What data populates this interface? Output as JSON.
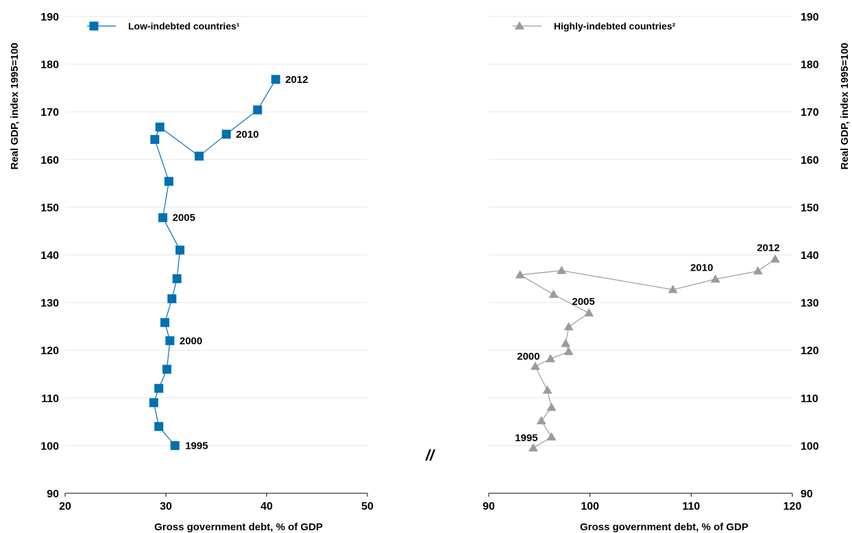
{
  "chart_data": [
    {
      "type": "line",
      "ylabel": "Real GDP, index 1995=100",
      "xlabel": "Gross government debt, % of GDP",
      "xlim": [
        20,
        50
      ],
      "ylim": [
        90,
        190
      ],
      "xticks": [
        20,
        30,
        40,
        50
      ],
      "yticks": [
        90,
        100,
        110,
        120,
        130,
        140,
        150,
        160,
        170,
        180,
        190
      ],
      "grid": "horizontal",
      "legend_position": "top-left",
      "series": [
        {
          "name": "Low-indebted countries¹",
          "color": "#0070b0",
          "marker": "square",
          "x": [
            30.9,
            29.3,
            28.8,
            29.3,
            30.1,
            30.4,
            29.9,
            30.6,
            31.1,
            31.4,
            29.7,
            30.3,
            28.9,
            29.4,
            33.3,
            36.0,
            39.1,
            40.9
          ],
          "y": [
            100.0,
            104.0,
            109.0,
            112.0,
            116.0,
            122.0,
            125.8,
            130.8,
            135.0,
            141.0,
            147.8,
            155.4,
            164.2,
            166.8,
            160.7,
            165.3,
            170.4,
            176.8
          ]
        }
      ],
      "annotations": [
        {
          "text": "1995",
          "x": 30.9,
          "y": 100.0
        },
        {
          "text": "2000",
          "x": 30.4,
          "y": 122.0
        },
        {
          "text": "2005",
          "x": 29.7,
          "y": 147.8
        },
        {
          "text": "2010",
          "x": 36.0,
          "y": 165.3
        },
        {
          "text": "2012",
          "x": 40.9,
          "y": 176.8
        }
      ]
    },
    {
      "type": "line",
      "ylabel": "Real GDP, index 1995=100",
      "xlabel": "Gross government debt, % of GDP",
      "xlim": [
        90,
        120
      ],
      "ylim": [
        90,
        190
      ],
      "xticks": [
        90,
        100,
        110,
        120
      ],
      "yticks": [
        90,
        100,
        110,
        120,
        130,
        140,
        150,
        160,
        170,
        180,
        190
      ],
      "grid": "horizontal",
      "legend_position": "top-left",
      "series": [
        {
          "name": "Highly-indebted countries²",
          "color": "#9b9b9b",
          "marker": "triangle",
          "x": [
            94.4,
            96.2,
            95.2,
            96.2,
            95.8,
            94.6,
            96.1,
            97.9,
            97.6,
            97.9,
            99.9,
            96.4,
            93.1,
            97.2,
            108.2,
            112.4,
            116.6,
            118.3
          ],
          "y": [
            99.5,
            101.8,
            105.2,
            108.0,
            111.6,
            116.6,
            118.2,
            119.7,
            121.4,
            124.9,
            127.8,
            131.7,
            135.8,
            136.7,
            132.7,
            134.9,
            136.6,
            139.1
          ]
        }
      ],
      "annotations": [
        {
          "text": "1995",
          "x": 94.4,
          "y": 99.5
        },
        {
          "text": "2000",
          "x": 94.6,
          "y": 116.6
        },
        {
          "text": "2005",
          "x": 99.9,
          "y": 127.8
        },
        {
          "text": "2010",
          "x": 112.4,
          "y": 134.9
        },
        {
          "text": "2012",
          "x": 118.3,
          "y": 139.1
        }
      ]
    }
  ],
  "axis_break": "//"
}
